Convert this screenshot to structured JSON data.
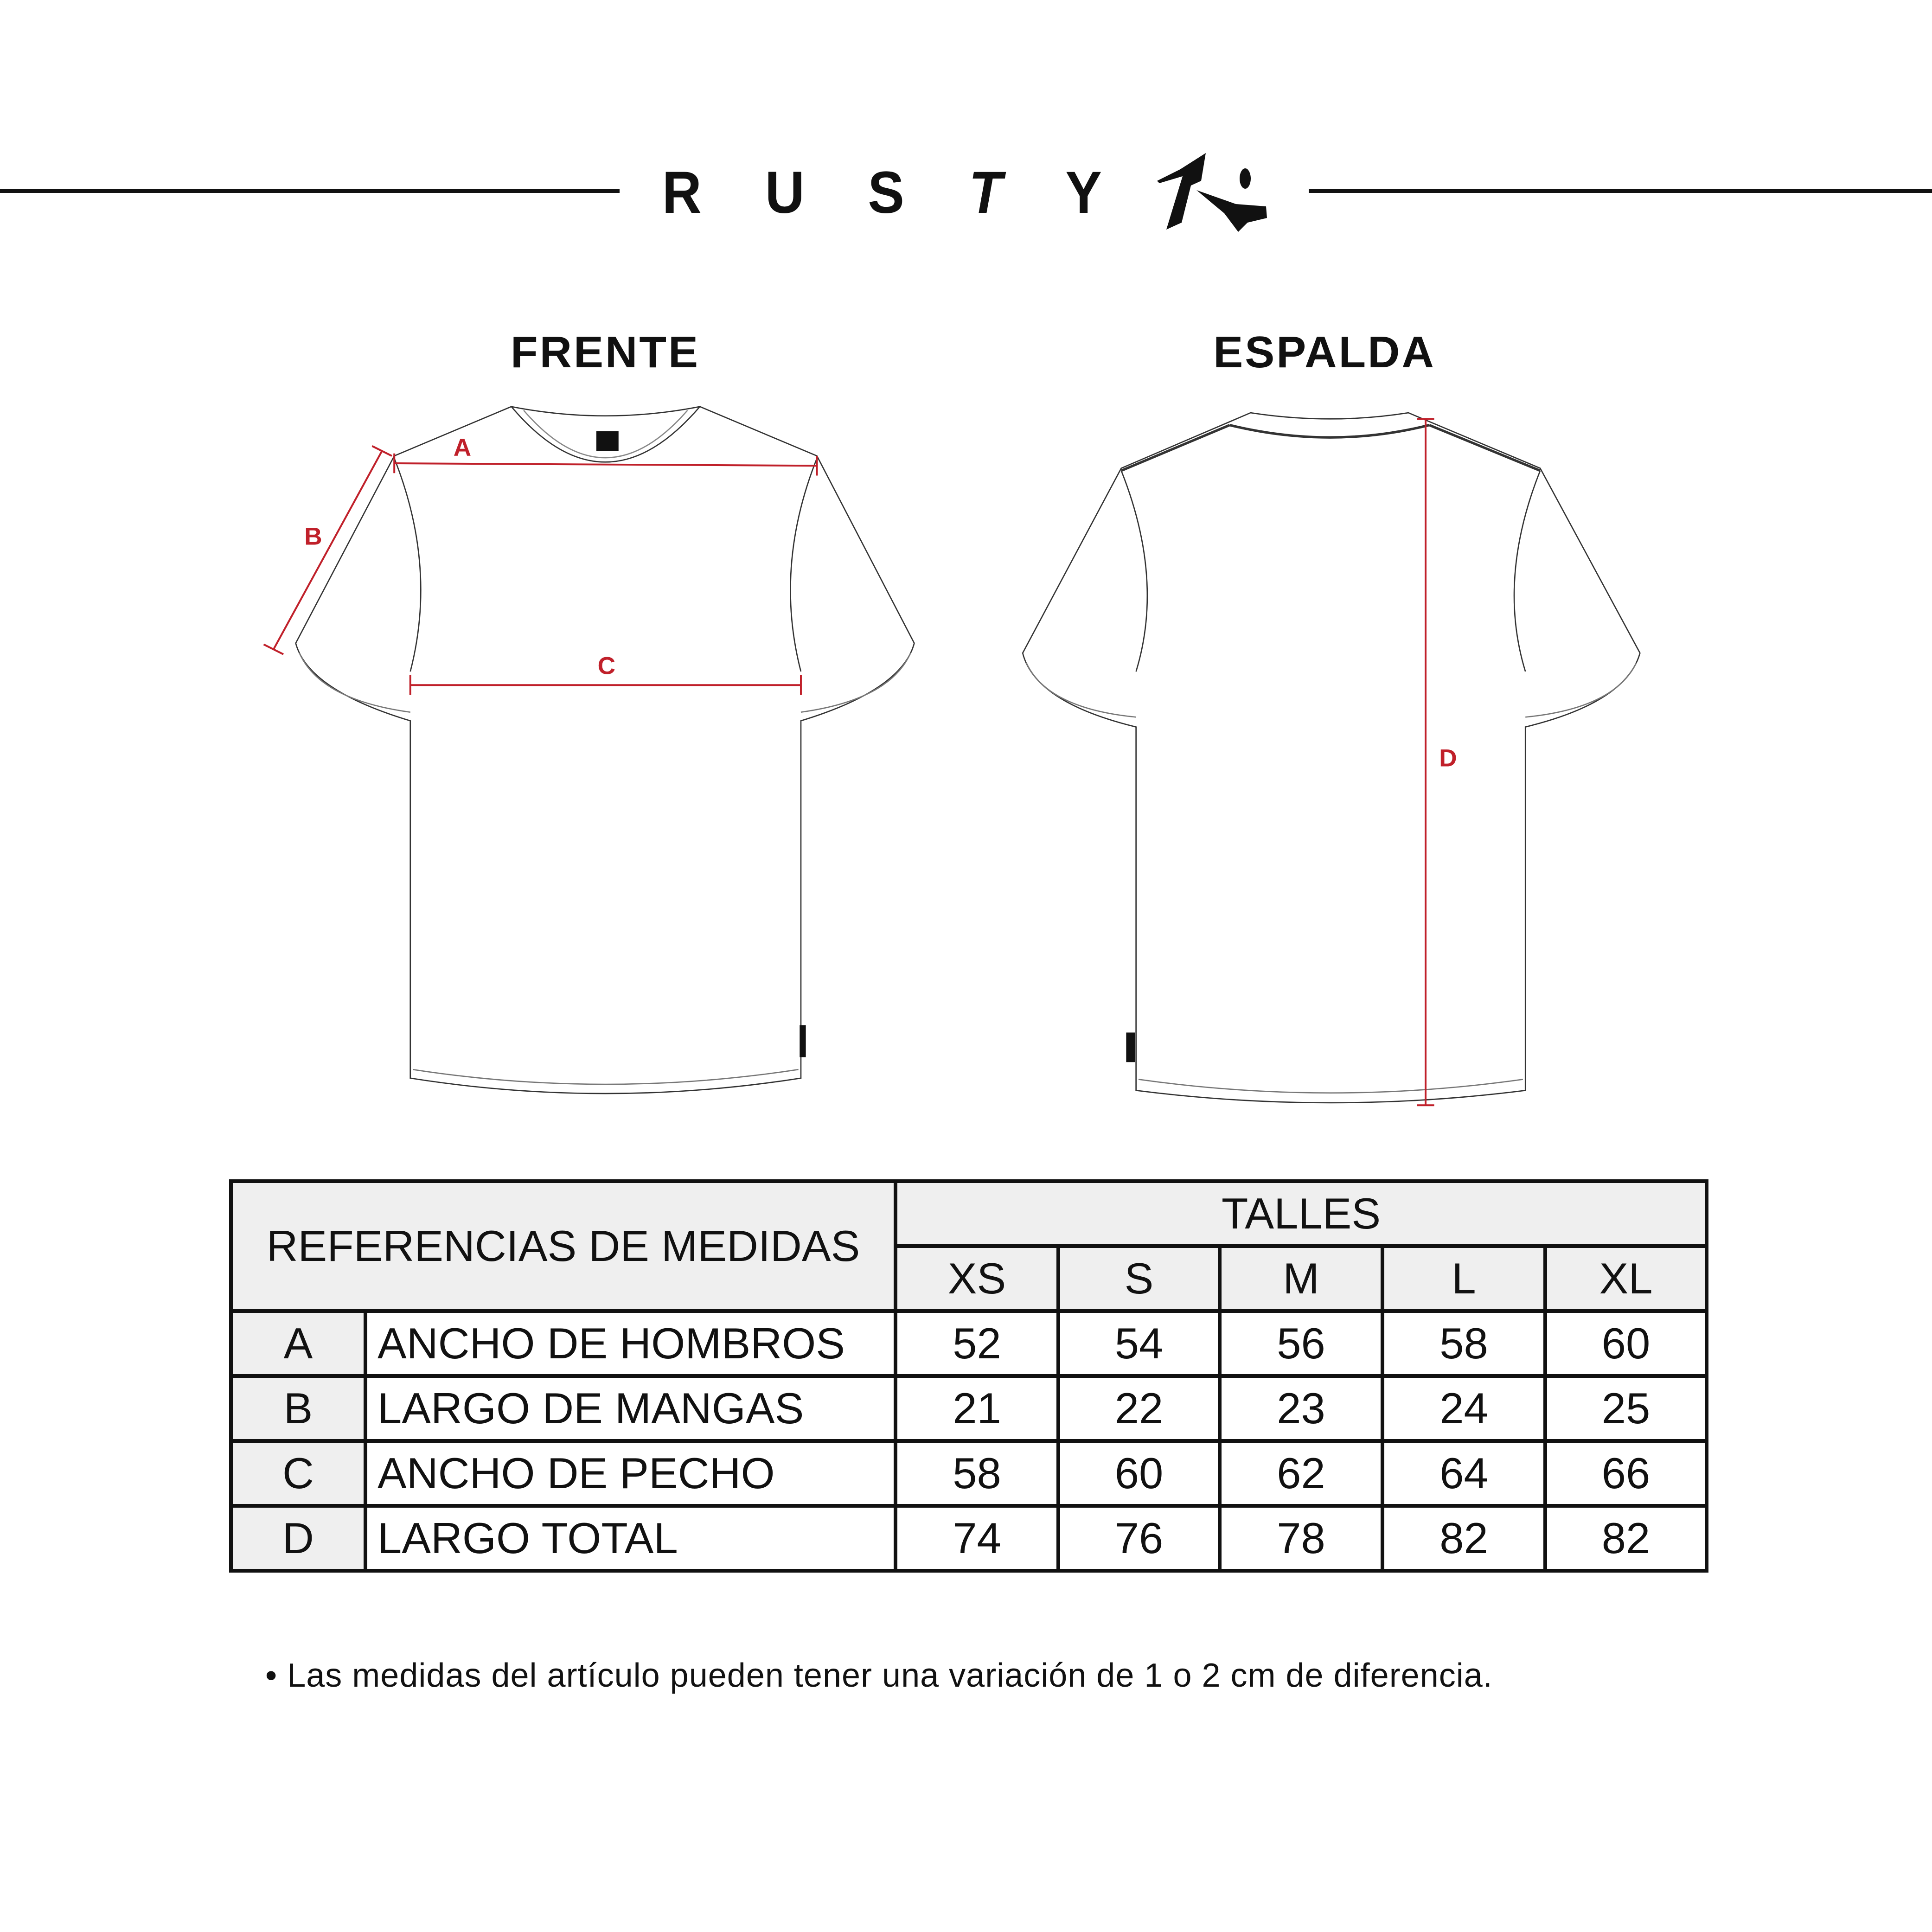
{
  "brand": {
    "letters": [
      "R",
      "U",
      "S",
      "T",
      "Y"
    ],
    "logo_text": "RUSTY"
  },
  "views": {
    "front_title": "FRENTE",
    "back_title": "ESPALDA"
  },
  "diagram_labels": {
    "a": "A",
    "b": "B",
    "c": "C",
    "d": "D"
  },
  "colors": {
    "measure_line": "#c0202a",
    "header_fill": "#efefef",
    "ink": "#111111"
  },
  "table": {
    "ref_header": "REFERENCIAS DE MEDIDAS",
    "sizes_header": "TALLES",
    "sizes": [
      "XS",
      "S",
      "M",
      "L",
      "XL"
    ],
    "rows": [
      {
        "code": "A",
        "label": "ANCHO DE HOMBROS",
        "values": [
          "52",
          "54",
          "56",
          "58",
          "60"
        ]
      },
      {
        "code": "B",
        "label": "LARGO DE MANGAS",
        "values": [
          "21",
          "22",
          "23",
          "24",
          "25"
        ]
      },
      {
        "code": "C",
        "label": "ANCHO DE PECHO",
        "values": [
          "58",
          "60",
          "62",
          "64",
          "66"
        ]
      },
      {
        "code": "D",
        "label": "LARGO TOTAL",
        "values": [
          "74",
          "76",
          "78",
          "82",
          "82"
        ]
      }
    ]
  },
  "footnote": "• Las medidas del artículo pueden tener una variación de 1 o 2 cm de diferencia."
}
